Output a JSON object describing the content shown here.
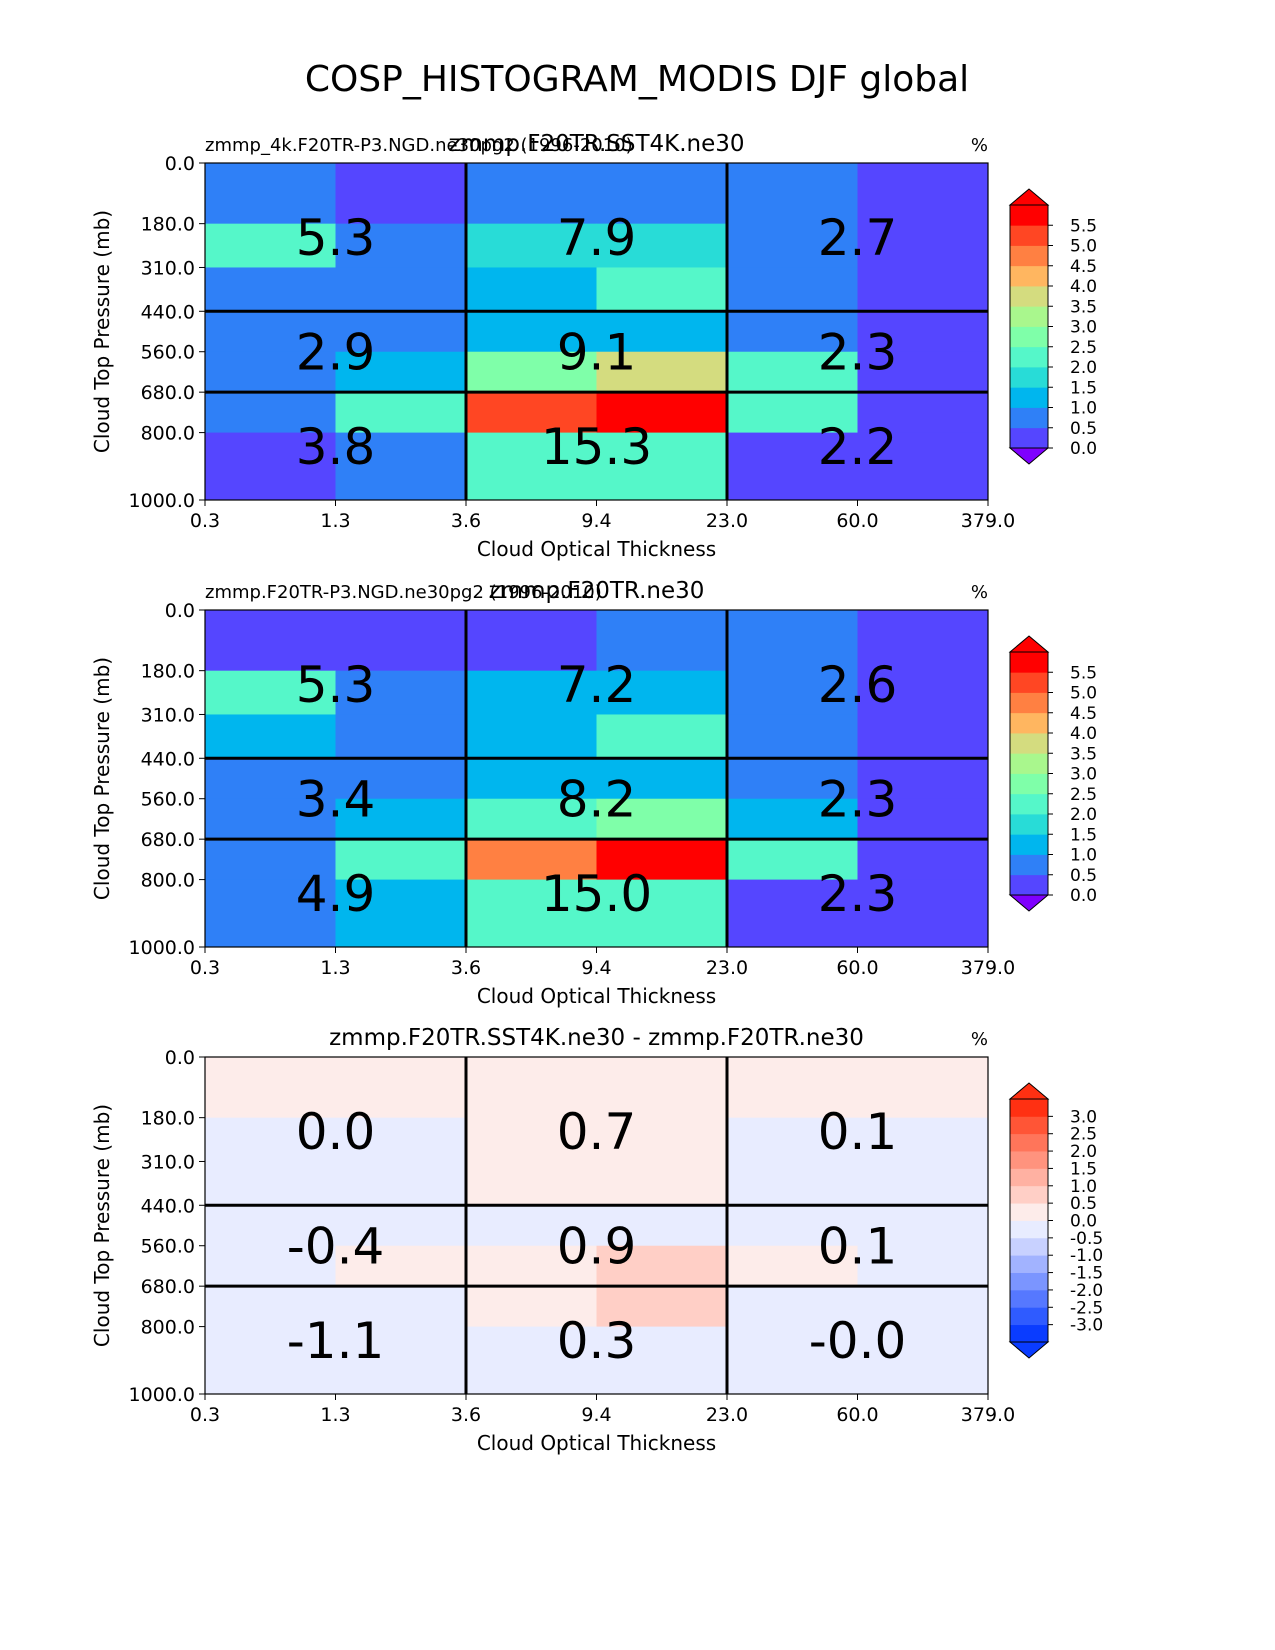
{
  "figure_title": "COSP_HISTOGRAM_MODIS DJF global",
  "chart_data": [
    {
      "type": "heatmap",
      "title": "zmmp.F20TR.SST4K.ne30",
      "subtitle_left": "zmmp_4k.F20TR-P3.NGD.ne30pg2 (1996-2010)",
      "units": "%",
      "xlabel": "Cloud Optical Thickness",
      "ylabel": "Cloud Top Pressure (mb)",
      "xticks": [
        "0.3",
        "1.3",
        "3.6",
        "9.4",
        "23.0",
        "60.0",
        "379.0"
      ],
      "yticks": [
        "0.0",
        "180.0",
        "310.0",
        "440.0",
        "560.0",
        "680.0",
        "800.0",
        "1000.0"
      ],
      "cells": [
        [
          0.8,
          0.4,
          0.8,
          0.8,
          0.8,
          0.3
        ],
        [
          2.0,
          0.9,
          1.5,
          1.8,
          0.9,
          0.3
        ],
        [
          0.9,
          0.9,
          1.4,
          2.3,
          0.9,
          0.3
        ],
        [
          0.8,
          0.9,
          1.4,
          1.4,
          0.8,
          0.3
        ],
        [
          0.8,
          1.4,
          2.7,
          3.7,
          2.0,
          0.3
        ],
        [
          0.8,
          2.0,
          5.2,
          6.0,
          2.0,
          0.3
        ],
        [
          0.3,
          0.9,
          2.0,
          2.0,
          0.3,
          0.3
        ]
      ],
      "box_values": [
        [
          "5.3",
          "7.9",
          "2.7"
        ],
        [
          "2.9",
          "9.1",
          "2.3"
        ],
        [
          "3.8",
          "15.3",
          "2.2"
        ]
      ],
      "colorbar": {
        "levels": [
          "0.0",
          "0.5",
          "1.0",
          "1.5",
          "2.0",
          "2.5",
          "3.0",
          "3.5",
          "4.0",
          "4.5",
          "5.0",
          "5.5"
        ],
        "colors": [
          "#5546ff",
          "#2f80f7",
          "#00b6ee",
          "#28dcd7",
          "#55f7c9",
          "#7fffa9",
          "#a9f78d",
          "#d4dc7f",
          "#ffb660",
          "#ff8042",
          "#ff4623",
          "#ff0000"
        ],
        "under": "#7f00ff",
        "over": "#ff0000"
      }
    },
    {
      "type": "heatmap",
      "title": "zmmp.F20TR.ne30",
      "subtitle_left": "zmmp.F20TR-P3.NGD.ne30pg2 (1996-2010)",
      "units": "%",
      "xlabel": "Cloud Optical Thickness",
      "ylabel": "Cloud Top Pressure (mb)",
      "xticks": [
        "0.3",
        "1.3",
        "3.6",
        "9.4",
        "23.0",
        "60.0",
        "379.0"
      ],
      "yticks": [
        "0.0",
        "180.0",
        "310.0",
        "440.0",
        "560.0",
        "680.0",
        "800.0",
        "1000.0"
      ],
      "cells": [
        [
          0.3,
          0.3,
          0.3,
          0.8,
          0.8,
          0.3
        ],
        [
          2.0,
          0.8,
          1.4,
          1.4,
          0.8,
          0.3
        ],
        [
          1.4,
          0.8,
          1.4,
          2.3,
          0.8,
          0.3
        ],
        [
          0.8,
          0.8,
          1.4,
          1.4,
          0.8,
          0.3
        ],
        [
          0.8,
          1.4,
          2.2,
          2.7,
          1.4,
          0.3
        ],
        [
          0.8,
          2.3,
          4.7,
          6.0,
          2.0,
          0.3
        ],
        [
          0.8,
          1.4,
          2.3,
          2.0,
          0.3,
          0.3
        ]
      ],
      "box_values": [
        [
          "5.3",
          "7.2",
          "2.6"
        ],
        [
          "3.4",
          "8.2",
          "2.3"
        ],
        [
          "4.9",
          "15.0",
          "2.3"
        ]
      ],
      "colorbar": {
        "levels": [
          "0.0",
          "0.5",
          "1.0",
          "1.5",
          "2.0",
          "2.5",
          "3.0",
          "3.5",
          "4.0",
          "4.5",
          "5.0",
          "5.5"
        ],
        "colors": [
          "#5546ff",
          "#2f80f7",
          "#00b6ee",
          "#28dcd7",
          "#55f7c9",
          "#7fffa9",
          "#a9f78d",
          "#d4dc7f",
          "#ffb660",
          "#ff8042",
          "#ff4623",
          "#ff0000"
        ],
        "under": "#7f00ff",
        "over": "#ff0000"
      }
    },
    {
      "type": "heatmap",
      "title": "zmmp.F20TR.SST4K.ne30 - zmmp.F20TR.ne30",
      "subtitle_left": "",
      "units": "%",
      "xlabel": "Cloud Optical Thickness",
      "ylabel": "Cloud Top Pressure (mb)",
      "xticks": [
        "0.3",
        "1.3",
        "3.6",
        "9.4",
        "23.0",
        "60.0",
        "379.0"
      ],
      "yticks": [
        "0.0",
        "180.0",
        "310.0",
        "440.0",
        "560.0",
        "680.0",
        "800.0",
        "1000.0"
      ],
      "cells": [
        [
          0.1,
          0.1,
          0.1,
          0.1,
          0.1,
          0.1
        ],
        [
          -0.1,
          -0.1,
          0.1,
          0.1,
          -0.1,
          -0.1
        ],
        [
          -0.1,
          -0.1,
          0.1,
          0.1,
          -0.1,
          -0.1
        ],
        [
          -0.1,
          -0.1,
          -0.1,
          -0.1,
          -0.1,
          -0.1
        ],
        [
          -0.1,
          0.1,
          0.1,
          0.7,
          0.1,
          -0.1
        ],
        [
          -0.1,
          -0.1,
          0.1,
          0.7,
          -0.1,
          -0.1
        ],
        [
          -0.1,
          -0.1,
          -0.1,
          -0.1,
          -0.1,
          -0.1
        ]
      ],
      "box_values": [
        [
          "0.0",
          "0.7",
          "0.1"
        ],
        [
          "-0.4",
          "0.9",
          "0.1"
        ],
        [
          "-1.1",
          "0.3",
          "-0.0"
        ]
      ],
      "colorbar": {
        "levels": [
          "-3.0",
          "-2.5",
          "-2.0",
          "-1.5",
          "-1.0",
          "-0.5",
          "0.0",
          "0.5",
          "1.0",
          "1.5",
          "2.0",
          "2.5",
          "3.0"
        ],
        "colors": [
          "#0a3cff",
          "#2f5bff",
          "#5678ff",
          "#7b95ff",
          "#a2b3ff",
          "#c8d1ff",
          "#e8ecff",
          "#fdecea",
          "#ffcfc6",
          "#ffb1a2",
          "#ff937e",
          "#ff755a",
          "#ff5536",
          "#ff3012"
        ],
        "under": "#0a3cff",
        "over": "#ff3012"
      }
    }
  ]
}
